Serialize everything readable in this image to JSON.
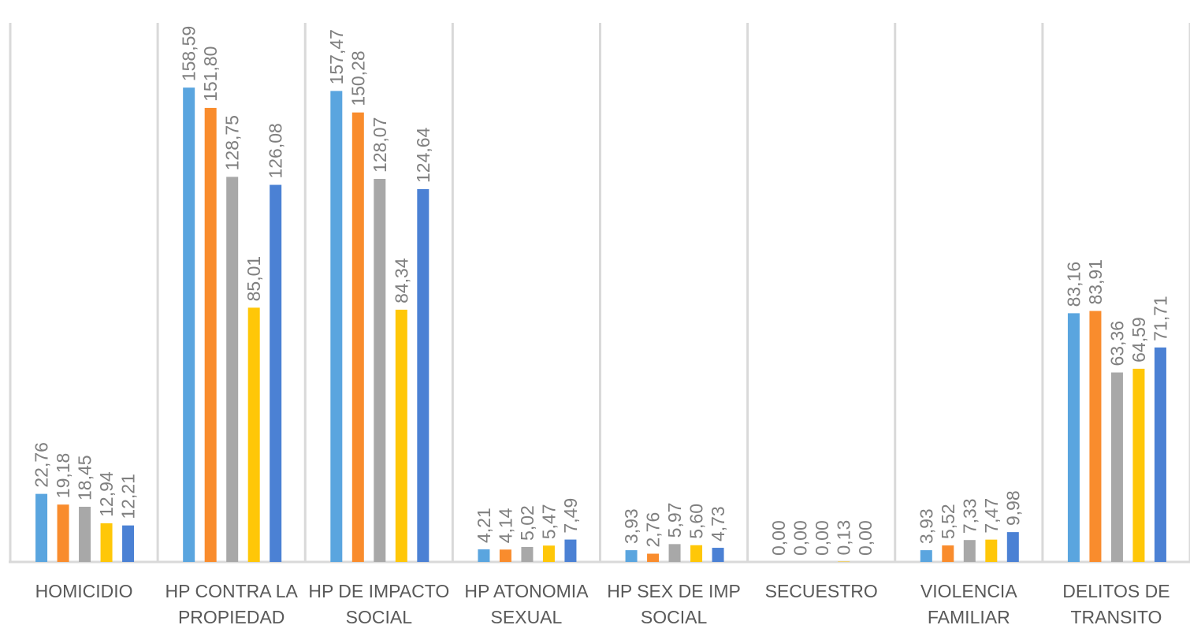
{
  "chart_data": {
    "type": "bar",
    "categories": [
      [
        "HOMICIDIO"
      ],
      [
        "HP CONTRA LA",
        "PROPIEDAD"
      ],
      [
        "HP DE IMPACTO",
        "SOCIAL"
      ],
      [
        "HP ATONOMIA",
        "SEXUAL"
      ],
      [
        "HP SEX DE IMP",
        "SOCIAL"
      ],
      [
        "SECUESTRO"
      ],
      [
        "VIOLENCIA",
        "FAMILIAR"
      ],
      [
        "DELITOS DE",
        "TRANSITO"
      ]
    ],
    "series": [
      {
        "color": "#5aa5df",
        "values": [
          22.76,
          158.59,
          157.47,
          4.21,
          3.93,
          0.0,
          3.93,
          83.16
        ],
        "labels": [
          "22,76",
          "158,59",
          "157,47",
          "4,21",
          "3,93",
          "0,00",
          "3,93",
          "83,16"
        ]
      },
      {
        "color": "#f98c2d",
        "values": [
          19.18,
          151.8,
          150.28,
          4.14,
          2.76,
          0.0,
          5.52,
          83.91
        ],
        "labels": [
          "19,18",
          "151,80",
          "150,28",
          "4,14",
          "2,76",
          "0,00",
          "5,52",
          "83,91"
        ]
      },
      {
        "color": "#a8a8a8",
        "values": [
          18.45,
          128.75,
          128.07,
          5.02,
          5.97,
          0.0,
          7.33,
          63.36
        ],
        "labels": [
          "18,45",
          "128,75",
          "128,07",
          "5,02",
          "5,97",
          "0,00",
          "7,33",
          "63,36"
        ]
      },
      {
        "color": "#ffc708",
        "values": [
          12.94,
          85.01,
          84.34,
          5.47,
          5.6,
          0.13,
          7.47,
          64.59
        ],
        "labels": [
          "12,94",
          "85,01",
          "84,34",
          "5,47",
          "5,60",
          "0,13",
          "7,47",
          "64,59"
        ]
      },
      {
        "color": "#4b81d4",
        "values": [
          12.21,
          126.08,
          124.64,
          7.49,
          4.73,
          0.0,
          9.98,
          71.71
        ],
        "labels": [
          "12,21",
          "126,08",
          "124,64",
          "7,49",
          "4,73",
          "0,00",
          "9,98",
          "71,71"
        ]
      }
    ],
    "ylim": [
      0,
      180
    ],
    "grid": "vertical separators",
    "legend": "none"
  }
}
